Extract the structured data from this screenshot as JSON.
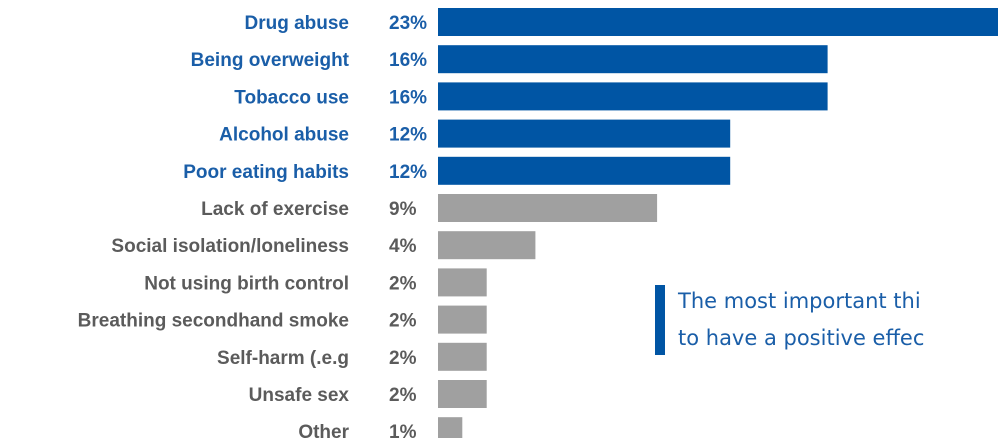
{
  "chart_data": {
    "type": "bar",
    "orientation": "horizontal",
    "categories": [
      "Drug abuse",
      "Being overweight",
      "Tobacco use",
      "Alcohol abuse",
      "Poor eating habits",
      "Lack of exercise",
      "Social isolation/loneliness",
      "Not using birth control",
      "Breathing secondhand smoke",
      "Self-harm (.e.g",
      "Unsafe sex",
      "Other"
    ],
    "values": [
      23,
      16,
      16,
      12,
      12,
      9,
      4,
      2,
      2,
      2,
      2,
      1
    ],
    "value_labels": [
      "23%",
      "16%",
      "16%",
      "12%",
      "12%",
      "9%",
      "4%",
      "2%",
      "2%",
      "2%",
      "2%",
      "1%"
    ],
    "highlighted": [
      true,
      true,
      true,
      true,
      true,
      false,
      false,
      false,
      false,
      false,
      false,
      false
    ],
    "xlim": [
      0,
      23
    ],
    "grid": false,
    "legend": "none",
    "title": "",
    "xlabel": "",
    "ylabel": ""
  },
  "callout": {
    "lines": [
      "The most important thi",
      "to have a positive effec"
    ]
  },
  "colors": {
    "highlight": "#0055A4",
    "muted": "#A0A0A0",
    "highlight_text": "#1A5EA8",
    "muted_text": "#5B5B5B",
    "callout_bar": "#0055A4",
    "callout_text": "#1A5EA8"
  }
}
